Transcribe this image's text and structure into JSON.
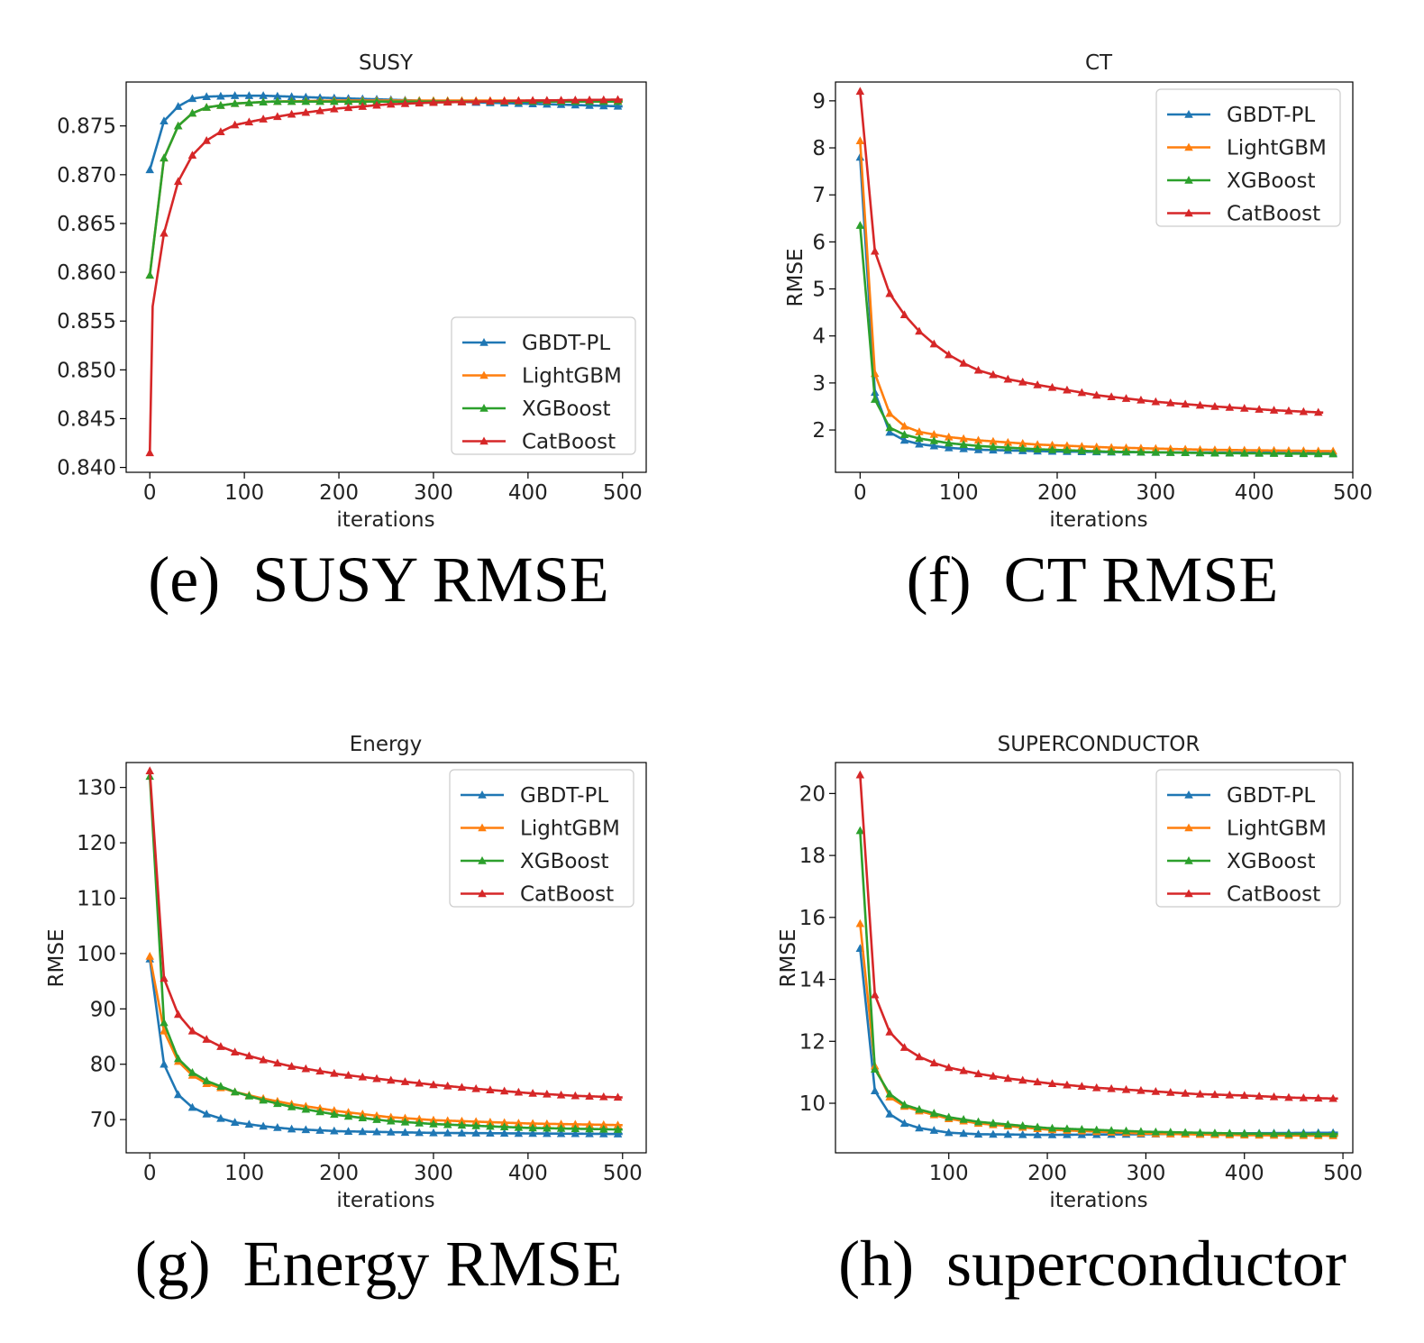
{
  "colors": {
    "GBDT-PL": "#1f77b4",
    "LightGBM": "#ff7f0e",
    "XGBoost": "#2ca02c",
    "CatBoost": "#d62728"
  },
  "chart_data": [
    {
      "id": "susy",
      "type": "line",
      "title": "SUSY",
      "xlabel": "iterations",
      "ylabel": "",
      "caption": "(e)  SUSY RMSE",
      "xlim": [
        -25,
        525
      ],
      "ylim": [
        0.8395,
        0.8795
      ],
      "xticks": [
        0,
        100,
        200,
        300,
        400,
        500
      ],
      "yticks": [
        0.84,
        0.845,
        0.85,
        0.855,
        0.86,
        0.865,
        0.87,
        0.875
      ],
      "ytick_decimals": 3,
      "legend": "lower-right",
      "marker_step": 15,
      "marker_end": 500,
      "series": [
        {
          "name": "GBDT-PL",
          "points": [
            [
              0,
              0.8705
            ],
            [
              15,
              0.8755
            ],
            [
              30,
              0.877
            ],
            [
              45,
              0.8778
            ],
            [
              60,
              0.878
            ],
            [
              90,
              0.8781
            ],
            [
              120,
              0.8781
            ],
            [
              180,
              0.8779
            ],
            [
              250,
              0.8777
            ],
            [
              350,
              0.8774
            ],
            [
              430,
              0.8772
            ],
            [
              500,
              0.877
            ]
          ]
        },
        {
          "name": "LightGBM",
          "points": [
            [
              0,
              0.8597
            ],
            [
              15,
              0.8717
            ],
            [
              30,
              0.875
            ],
            [
              45,
              0.8763
            ],
            [
              60,
              0.8769
            ],
            [
              90,
              0.8773
            ],
            [
              130,
              0.8775
            ],
            [
              200,
              0.8776
            ],
            [
              300,
              0.8776
            ],
            [
              400,
              0.8776
            ],
            [
              500,
              0.8776
            ]
          ]
        },
        {
          "name": "XGBoost",
          "points": [
            [
              0,
              0.8597
            ],
            [
              15,
              0.8717
            ],
            [
              30,
              0.875
            ],
            [
              45,
              0.8763
            ],
            [
              60,
              0.8769
            ],
            [
              90,
              0.8773
            ],
            [
              130,
              0.8775
            ],
            [
              200,
              0.8775
            ],
            [
              300,
              0.8775
            ],
            [
              400,
              0.8775
            ],
            [
              500,
              0.8775
            ]
          ]
        },
        {
          "name": "CatBoost",
          "points": [
            [
              0,
              0.8415
            ],
            [
              3,
              0.8565
            ],
            [
              15,
              0.864
            ],
            [
              30,
              0.8693
            ],
            [
              45,
              0.872
            ],
            [
              60,
              0.8735
            ],
            [
              75,
              0.8744
            ],
            [
              90,
              0.8751
            ],
            [
              120,
              0.8757
            ],
            [
              150,
              0.8762
            ],
            [
              200,
              0.8768
            ],
            [
              250,
              0.8772
            ],
            [
              300,
              0.8774
            ],
            [
              350,
              0.8775
            ],
            [
              400,
              0.8776
            ],
            [
              500,
              0.8777
            ]
          ]
        }
      ]
    },
    {
      "id": "ct",
      "type": "line",
      "title": "CT",
      "xlabel": "iterations",
      "ylabel": "RMSE",
      "caption": "(f)  CT RMSE",
      "xlim": [
        -25,
        500
      ],
      "ylim": [
        1.1,
        9.4
      ],
      "xticks": [
        0,
        100,
        200,
        300,
        400,
        500
      ],
      "yticks": [
        2,
        3,
        4,
        5,
        6,
        7,
        8,
        9
      ],
      "ytick_decimals": 0,
      "legend": "upper-right",
      "marker_step": 15,
      "marker_end": 480,
      "series": [
        {
          "name": "GBDT-PL",
          "points": [
            [
              0,
              7.8
            ],
            [
              15,
              2.8
            ],
            [
              30,
              1.95
            ],
            [
              45,
              1.78
            ],
            [
              60,
              1.7
            ],
            [
              90,
              1.62
            ],
            [
              120,
              1.58
            ],
            [
              180,
              1.55
            ],
            [
              250,
              1.53
            ],
            [
              350,
              1.52
            ],
            [
              480,
              1.51
            ]
          ]
        },
        {
          "name": "LightGBM",
          "points": [
            [
              0,
              8.15
            ],
            [
              15,
              3.2
            ],
            [
              30,
              2.35
            ],
            [
              45,
              2.08
            ],
            [
              60,
              1.96
            ],
            [
              90,
              1.85
            ],
            [
              120,
              1.78
            ],
            [
              180,
              1.69
            ],
            [
              250,
              1.63
            ],
            [
              350,
              1.58
            ],
            [
              480,
              1.55
            ]
          ]
        },
        {
          "name": "XGBoost",
          "points": [
            [
              0,
              6.35
            ],
            [
              15,
              2.65
            ],
            [
              30,
              2.05
            ],
            [
              45,
              1.9
            ],
            [
              60,
              1.82
            ],
            [
              90,
              1.72
            ],
            [
              120,
              1.66
            ],
            [
              180,
              1.59
            ],
            [
              250,
              1.54
            ],
            [
              350,
              1.51
            ],
            [
              480,
              1.49
            ]
          ]
        },
        {
          "name": "CatBoost",
          "points": [
            [
              0,
              9.2
            ],
            [
              15,
              5.8
            ],
            [
              30,
              4.9
            ],
            [
              45,
              4.45
            ],
            [
              60,
              4.1
            ],
            [
              75,
              3.83
            ],
            [
              90,
              3.6
            ],
            [
              105,
              3.42
            ],
            [
              120,
              3.27
            ],
            [
              150,
              3.08
            ],
            [
              180,
              2.96
            ],
            [
              210,
              2.85
            ],
            [
              240,
              2.74
            ],
            [
              300,
              2.6
            ],
            [
              360,
              2.5
            ],
            [
              420,
              2.42
            ],
            [
              470,
              2.37
            ]
          ]
        }
      ]
    },
    {
      "id": "energy",
      "type": "line",
      "title": "Energy",
      "xlabel": "iterations",
      "ylabel": "RMSE",
      "caption": "(g)  Energy RMSE",
      "xlim": [
        -25,
        525
      ],
      "ylim": [
        64,
        134.5
      ],
      "xticks": [
        0,
        100,
        200,
        300,
        400,
        500
      ],
      "yticks": [
        70,
        80,
        90,
        100,
        110,
        120,
        130
      ],
      "ytick_decimals": 0,
      "legend": "upper-right",
      "marker_step": 15,
      "marker_end": 500,
      "series": [
        {
          "name": "GBDT-PL",
          "points": [
            [
              0,
              99
            ],
            [
              15,
              80
            ],
            [
              30,
              74.5
            ],
            [
              45,
              72.2
            ],
            [
              60,
              71
            ],
            [
              75,
              70.2
            ],
            [
              90,
              69.5
            ],
            [
              120,
              68.8
            ],
            [
              150,
              68.3
            ],
            [
              200,
              67.9
            ],
            [
              300,
              67.6
            ],
            [
              400,
              67.5
            ],
            [
              500,
              67.4
            ]
          ]
        },
        {
          "name": "LightGBM",
          "points": [
            [
              0,
              99.5
            ],
            [
              15,
              86
            ],
            [
              30,
              80.5
            ],
            [
              45,
              78
            ],
            [
              60,
              76.5
            ],
            [
              90,
              75
            ],
            [
              120,
              73.8
            ],
            [
              150,
              72.8
            ],
            [
              200,
              71.5
            ],
            [
              250,
              70.5
            ],
            [
              300,
              69.9
            ],
            [
              400,
              69.3
            ],
            [
              500,
              69
            ]
          ]
        },
        {
          "name": "XGBoost",
          "points": [
            [
              0,
              132
            ],
            [
              15,
              87.5
            ],
            [
              30,
              81
            ],
            [
              45,
              78.5
            ],
            [
              60,
              77
            ],
            [
              90,
              75
            ],
            [
              120,
              73.5
            ],
            [
              150,
              72.3
            ],
            [
              200,
              70.8
            ],
            [
              250,
              69.8
            ],
            [
              300,
              69.2
            ],
            [
              400,
              68.5
            ],
            [
              500,
              68.2
            ]
          ]
        },
        {
          "name": "CatBoost",
          "points": [
            [
              0,
              133
            ],
            [
              15,
              95.5
            ],
            [
              30,
              89
            ],
            [
              45,
              86
            ],
            [
              60,
              84.5
            ],
            [
              75,
              83.2
            ],
            [
              90,
              82.2
            ],
            [
              120,
              80.8
            ],
            [
              150,
              79.6
            ],
            [
              200,
              78.2
            ],
            [
              250,
              77.2
            ],
            [
              300,
              76.3
            ],
            [
              350,
              75.5
            ],
            [
              400,
              74.8
            ],
            [
              450,
              74.3
            ],
            [
              500,
              74
            ]
          ]
        }
      ]
    },
    {
      "id": "superconductor",
      "type": "line",
      "title": "SUPERCONDUCTOR",
      "xlabel": "iterations",
      "ylabel": "RMSE",
      "caption": "(h)  superconductor",
      "xlim": [
        -15,
        510
      ],
      "ylim": [
        8.4,
        21
      ],
      "xticks": [
        100,
        200,
        300,
        400,
        500
      ],
      "yticks": [
        10,
        12,
        14,
        16,
        18,
        20
      ],
      "ytick_decimals": 0,
      "legend": "upper-right",
      "marker_step": 15,
      "marker_start": 10,
      "marker_end": 495,
      "series": [
        {
          "name": "GBDT-PL",
          "points": [
            [
              10,
              15
            ],
            [
              25,
              10.4
            ],
            [
              40,
              9.65
            ],
            [
              55,
              9.35
            ],
            [
              70,
              9.2
            ],
            [
              100,
              9.05
            ],
            [
              130,
              9.0
            ],
            [
              200,
              8.98
            ],
            [
              300,
              9.0
            ],
            [
              400,
              9.03
            ],
            [
              495,
              9.05
            ]
          ]
        },
        {
          "name": "LightGBM",
          "points": [
            [
              10,
              15.8
            ],
            [
              25,
              11.2
            ],
            [
              40,
              10.2
            ],
            [
              55,
              9.9
            ],
            [
              70,
              9.75
            ],
            [
              100,
              9.5
            ],
            [
              130,
              9.35
            ],
            [
              200,
              9.15
            ],
            [
              300,
              9.02
            ],
            [
              400,
              8.97
            ],
            [
              495,
              8.95
            ]
          ]
        },
        {
          "name": "XGBoost",
          "points": [
            [
              10,
              18.8
            ],
            [
              25,
              11.1
            ],
            [
              40,
              10.3
            ],
            [
              55,
              9.95
            ],
            [
              70,
              9.8
            ],
            [
              100,
              9.55
            ],
            [
              130,
              9.4
            ],
            [
              200,
              9.2
            ],
            [
              300,
              9.08
            ],
            [
              400,
              9.02
            ],
            [
              495,
              9.0
            ]
          ]
        },
        {
          "name": "CatBoost",
          "points": [
            [
              10,
              20.6
            ],
            [
              25,
              13.5
            ],
            [
              40,
              12.3
            ],
            [
              55,
              11.8
            ],
            [
              70,
              11.5
            ],
            [
              85,
              11.3
            ],
            [
              100,
              11.15
            ],
            [
              130,
              10.95
            ],
            [
              160,
              10.8
            ],
            [
              200,
              10.65
            ],
            [
              250,
              10.5
            ],
            [
              300,
              10.4
            ],
            [
              350,
              10.3
            ],
            [
              400,
              10.25
            ],
            [
              450,
              10.18
            ],
            [
              495,
              10.15
            ]
          ]
        }
      ]
    }
  ]
}
